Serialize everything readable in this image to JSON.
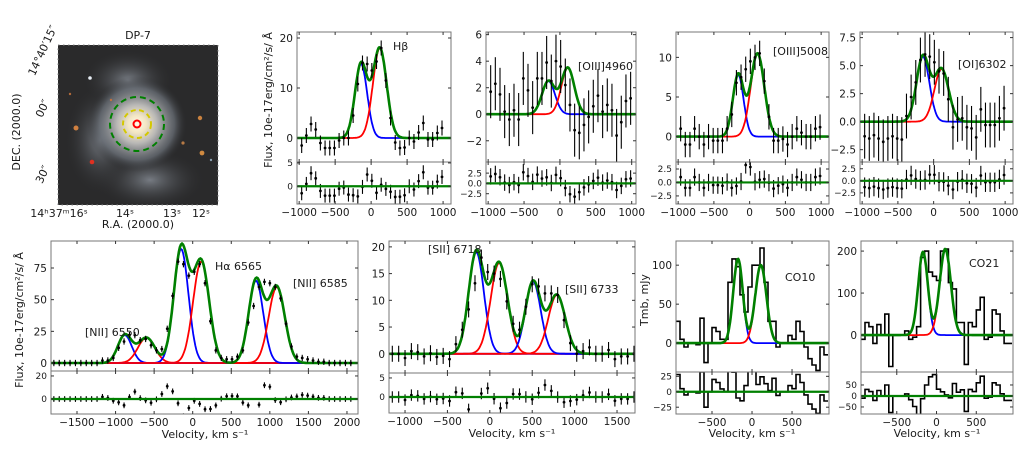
{
  "image_panel": {
    "title": "DP-7",
    "xlabel": "R.A. (2000.0)",
    "ylabel": "DEC. (2000.0)",
    "ra_tick_labels": [
      "14ʰ37ᵐ16ˢ",
      "14ˢ",
      "13ˢ",
      "12ˢ"
    ],
    "dec_tick_labels": [
      "14°40′15″",
      "00″",
      "30″"
    ],
    "aperture_colors": [
      "#008000",
      "#d4c800",
      "#ff0000"
    ]
  },
  "colors": {
    "blue_component": "#0000ff",
    "red_component": "#ff0000",
    "total_fit": "#008000",
    "data": "#000000"
  },
  "chart_data": [
    {
      "type": "line",
      "name": "hbeta",
      "labels": [
        "Hβ"
      ],
      "ylabel": "Flux, 10e-17erg/cm²/s/ Å",
      "xlabel": "",
      "xlim": [
        -1030,
        1110
      ],
      "ylim": [
        -4.8,
        21.2
      ],
      "resid_ylim": [
        -3.8,
        5.2
      ],
      "xticks": [
        -1000,
        -500,
        0,
        500,
        1000
      ],
      "xtick_labels": [
        "−1000",
        "−500",
        "0",
        "500",
        "1000"
      ],
      "yticks": [
        0,
        10,
        20
      ],
      "ytick_labels": [
        "0",
        "10",
        "20"
      ],
      "resid_yticks": [
        0,
        5
      ],
      "resid_ytick_labels": [
        "0",
        "5"
      ],
      "components": [
        {
          "center": -140,
          "amp": 14.8,
          "sigma": 85,
          "color": "blue"
        },
        {
          "center": 120,
          "amp": 18,
          "sigma": 95,
          "color": "red"
        }
      ],
      "style": "points",
      "err": 1.5,
      "x": [
        -965,
        -900,
        -835,
        -770,
        -705,
        -640,
        -575,
        -510,
        -445,
        -380,
        -315,
        -250,
        -185,
        -120,
        -55,
        10,
        75,
        140,
        205,
        270,
        335,
        400,
        465,
        530,
        595,
        660,
        725,
        790,
        855,
        920,
        985
      ],
      "y": [
        -1.5,
        0.5,
        2.8,
        1.7,
        -1,
        -2,
        -2,
        -2,
        -0.5,
        0,
        0,
        4.5,
        10.8,
        15,
        14.8,
        13.5,
        15.3,
        18,
        11.5,
        4,
        -0.9,
        -2,
        -1.9,
        0,
        -0.7,
        1.1,
        3,
        -0.3,
        -0.3,
        1,
        2
      ]
    },
    {
      "type": "line",
      "name": "oiii4960",
      "labels": [
        "[OIII]4960"
      ],
      "xlim": [
        -1030,
        1060
      ],
      "ylim": [
        -3.6,
        6.2
      ],
      "resid_ylim": [
        -5,
        5.2
      ],
      "xticks": [
        -1000,
        -500,
        0,
        500,
        1000
      ],
      "xtick_labels": [
        "−1000",
        "−500",
        "0",
        "500",
        "1000"
      ],
      "yticks": [
        -2,
        0,
        2,
        4,
        6
      ],
      "ytick_labels": [
        "−2",
        "0",
        "2",
        "4",
        "6"
      ],
      "resid_yticks": [
        -2.5,
        0,
        2.5
      ],
      "resid_ytick_labels": [
        "−2.5",
        "0.0",
        "2.5"
      ],
      "components": [
        {
          "center": -160,
          "amp": 2.5,
          "sigma": 90,
          "color": "blue"
        },
        {
          "center": 110,
          "amp": 3.5,
          "sigma": 90,
          "color": "red"
        }
      ],
      "style": "points",
      "err": 2,
      "x": [
        -965,
        -900,
        -835,
        -770,
        -705,
        -640,
        -575,
        -510,
        -445,
        -380,
        -315,
        -250,
        -185,
        -120,
        -55,
        10,
        75,
        140,
        205,
        270,
        335,
        400,
        465,
        530,
        595,
        660,
        725,
        790,
        855,
        920,
        985
      ],
      "y": [
        1.7,
        2.3,
        1.5,
        0.2,
        -0.4,
        0.3,
        -0.4,
        2.7,
        1.8,
        0.5,
        2.7,
        2.7,
        3.9,
        2.5,
        4.0,
        3.6,
        2.2,
        0.7,
        -1.2,
        -1.4,
        -0.8,
        -0.2,
        0.6,
        1.4,
        0.2,
        0.7,
        0.3,
        -1.6,
        -0.6,
        1.0,
        1.2
      ]
    },
    {
      "type": "line",
      "name": "oiii5008",
      "labels": [
        "[OIII]5008"
      ],
      "xlim": [
        -1030,
        1110
      ],
      "ylim": [
        -3.2,
        13.2
      ],
      "resid_ylim": [
        -4,
        3.8
      ],
      "xticks": [
        -1000,
        -500,
        0,
        500,
        1000
      ],
      "xtick_labels": [
        "−1000",
        "−500",
        "0",
        "500",
        "1000"
      ],
      "yticks": [
        0,
        5,
        10
      ],
      "ytick_labels": [
        "0",
        "5",
        "10"
      ],
      "resid_yticks": [
        -2.5,
        0,
        2.5
      ],
      "resid_ytick_labels": [
        "−2.5",
        "0.0",
        "2.5"
      ],
      "components": [
        {
          "center": -160,
          "amp": 7.8,
          "sigma": 75,
          "color": "blue"
        },
        {
          "center": 110,
          "amp": 10.5,
          "sigma": 95,
          "color": "red"
        }
      ],
      "style": "points",
      "err": 1.6,
      "x": [
        -965,
        -900,
        -835,
        -770,
        -705,
        -640,
        -575,
        -510,
        -445,
        -380,
        -315,
        -250,
        -185,
        -120,
        -55,
        10,
        75,
        140,
        205,
        270,
        335,
        400,
        465,
        530,
        595,
        660,
        725,
        790,
        855,
        920,
        985
      ],
      "y": [
        1,
        -1,
        -1,
        1,
        0,
        -1,
        0,
        -0.5,
        -0.5,
        -0.5,
        1,
        2.8,
        6.8,
        7.5,
        8.5,
        9.5,
        10,
        10.5,
        7,
        2.5,
        -0.5,
        -0.5,
        -0.3,
        -1,
        0,
        1,
        0.5,
        0,
        0,
        1,
        1.2
      ]
    },
    {
      "type": "line",
      "name": "oi6302",
      "labels": [
        "[OI]6302"
      ],
      "xlim": [
        -1030,
        1110
      ],
      "ylim": [
        -3.6,
        8.0
      ],
      "resid_ylim": [
        -4.8,
        3.9
      ],
      "xticks": [
        -1000,
        -500,
        0,
        500,
        1000
      ],
      "xtick_labels": [
        "−1000",
        "−500",
        "0",
        "500",
        "1000"
      ],
      "yticks": [
        -2.5,
        0,
        2.5,
        5,
        7.5
      ],
      "ytick_labels": [
        "−2.5",
        "0.0",
        "2.5",
        "5.0",
        "7.5"
      ],
      "resid_yticks": [
        -2.5,
        0,
        2.5
      ],
      "resid_ytick_labels": [
        "−2.5",
        "0.0",
        "2.5"
      ],
      "components": [
        {
          "center": -150,
          "amp": 5.8,
          "sigma": 90,
          "color": "blue"
        },
        {
          "center": 110,
          "amp": 4.7,
          "sigma": 100,
          "color": "red"
        }
      ],
      "style": "points",
      "err": 2,
      "x": [
        -965,
        -900,
        -835,
        -770,
        -705,
        -640,
        -575,
        -510,
        -445,
        -380,
        -315,
        -250,
        -185,
        -120,
        -55,
        10,
        75,
        140,
        205,
        270,
        335,
        400,
        465,
        530,
        595,
        660,
        725,
        790,
        855,
        920,
        985
      ],
      "y": [
        -1.3,
        -1.5,
        -1.2,
        -1.5,
        -1.8,
        -1.5,
        -1.3,
        -1.5,
        -1.6,
        0.5,
        2.2,
        3.5,
        5.5,
        6,
        5.8,
        5.3,
        4.5,
        4.3,
        2,
        -0.5,
        0.2,
        0.3,
        -0.5,
        -0.6,
        -1.4,
        1.1,
        -0.3,
        -0.3,
        -0.3,
        0.3,
        1.2
      ]
    },
    {
      "type": "line",
      "name": "halpha-nii",
      "labels": [
        "Hα 6565",
        "[NII] 6585",
        "[NII] 6550"
      ],
      "ylabel": "Flux, 10e-17erg/cm²/s/ Å",
      "xlabel": "Velocity, km s⁻¹",
      "xlim": [
        -1837,
        2143
      ],
      "ylim": [
        -6.3,
        96.3
      ],
      "resid_ylim": [
        -13,
        24.3
      ],
      "xticks": [
        -1500,
        -1000,
        -500,
        0,
        500,
        1000,
        1500,
        2000
      ],
      "xtick_labels": [
        "−1500",
        "−1000",
        "−500",
        "0",
        "500",
        "1000",
        "1500",
        "2000"
      ],
      "yticks": [
        0,
        25,
        50,
        75
      ],
      "ytick_labels": [
        "0",
        "25",
        "50",
        "75"
      ],
      "resid_yticks": [
        0,
        20
      ],
      "resid_ytick_labels": [
        "0",
        "20"
      ],
      "components": [
        {
          "center": -880,
          "amp": 22,
          "sigma": 90,
          "color": "blue"
        },
        {
          "center": -600,
          "amp": 20,
          "sigma": 110,
          "color": "red"
        },
        {
          "center": -150,
          "amp": 90,
          "sigma": 95,
          "color": "blue"
        },
        {
          "center": 110,
          "amp": 80,
          "sigma": 105,
          "color": "red"
        },
        {
          "center": 820,
          "amp": 65,
          "sigma": 95,
          "color": "blue"
        },
        {
          "center": 1090,
          "amp": 60,
          "sigma": 105,
          "color": "red"
        }
      ],
      "style": "points",
      "err": 2.5,
      "x": [
        -1800,
        -1730,
        -1660,
        -1590,
        -1520,
        -1450,
        -1380,
        -1310,
        -1240,
        -1170,
        -1100,
        -1030,
        -960,
        -890,
        -820,
        -750,
        -680,
        -610,
        -540,
        -470,
        -400,
        -330,
        -260,
        -190,
        -120,
        -50,
        20,
        90,
        160,
        230,
        300,
        370,
        440,
        510,
        580,
        650,
        720,
        790,
        860,
        930,
        1000,
        1070,
        1140,
        1210,
        1280,
        1350,
        1420,
        1490,
        1560,
        1630,
        1700,
        1770,
        1840,
        1910,
        1980,
        2050
      ],
      "y": [
        0,
        0,
        0,
        0,
        0,
        0,
        0,
        0,
        0,
        2,
        2,
        4,
        12,
        17,
        22,
        22,
        18,
        19,
        14,
        10,
        11,
        27,
        53,
        80,
        78,
        69,
        72,
        78,
        63,
        33,
        10,
        4,
        3,
        3,
        5,
        10,
        32,
        45,
        60,
        64,
        63,
        60,
        51,
        31,
        13,
        5,
        4,
        3,
        2,
        1,
        1,
        0,
        0,
        0,
        0,
        0
      ]
    },
    {
      "type": "line",
      "name": "sii",
      "labels": [
        "[SII] 6718",
        "[SII] 6733"
      ],
      "xlabel": "Velocity, km s⁻¹",
      "xlim": [
        -1189,
        1712
      ],
      "ylim": [
        -3.6,
        21.1
      ],
      "resid_ylim": [
        -4.2,
        6.3
      ],
      "xticks": [
        -1000,
        -500,
        0,
        500,
        1000,
        1500
      ],
      "xtick_labels": [
        "−1000",
        "−500",
        "0",
        "500",
        "1000",
        "1500"
      ],
      "yticks": [
        0,
        5,
        10,
        15,
        20
      ],
      "ytick_labels": [
        "0",
        "5",
        "10",
        "15",
        "20"
      ],
      "resid_yticks": [
        0,
        5
      ],
      "resid_ytick_labels": [
        "0",
        "5"
      ],
      "components": [
        {
          "center": -160,
          "amp": 19,
          "sigma": 90,
          "color": "blue"
        },
        {
          "center": 110,
          "amp": 17,
          "sigma": 100,
          "color": "red"
        },
        {
          "center": 510,
          "amp": 13.5,
          "sigma": 90,
          "color": "blue"
        },
        {
          "center": 790,
          "amp": 11,
          "sigma": 100,
          "color": "red"
        }
      ],
      "style": "points",
      "err": 1.5,
      "x": [
        -1150,
        -1075,
        -1000,
        -925,
        -850,
        -775,
        -700,
        -625,
        -550,
        -475,
        -400,
        -325,
        -250,
        -175,
        -100,
        -25,
        50,
        125,
        200,
        275,
        350,
        425,
        500,
        575,
        650,
        725,
        800,
        875,
        950,
        1025,
        1100,
        1175,
        1250,
        1325,
        1400,
        1475,
        1550,
        1625,
        1700
      ],
      "y": [
        0,
        0,
        -0.8,
        0.5,
        0.3,
        -0.5,
        0.1,
        -0.6,
        -0.4,
        -1,
        1.8,
        4.5,
        8.3,
        13.2,
        18,
        15.3,
        15,
        14,
        9.8,
        5.6,
        4.5,
        8.8,
        13,
        12.6,
        11.3,
        11.3,
        11,
        6.3,
        2,
        0,
        0.5,
        1.2,
        0,
        0,
        0.7,
        -1,
        -0.5,
        -0.5,
        0
      ]
    },
    {
      "type": "line",
      "name": "co10",
      "labels": [
        "CO10"
      ],
      "ylabel": "Tmb, mJy",
      "xlabel": "Velocity, km s⁻¹",
      "xlim": [
        -950,
        962
      ],
      "ylim": [
        -37,
        131
      ],
      "resid_ylim": [
        -36,
        32
      ],
      "xticks": [
        -500,
        0,
        500
      ],
      "xtick_labels": [
        "−500",
        "0",
        "500"
      ],
      "yticks": [
        0,
        50,
        100
      ],
      "ytick_labels": [
        "0",
        "50",
        "100"
      ],
      "resid_yticks": [
        -25,
        0,
        25
      ],
      "resid_ytick_labels": [
        "−25",
        "0",
        "25"
      ],
      "components": [
        {
          "center": -175,
          "amp": 108,
          "sigma": 60,
          "color": "blue"
        },
        {
          "center": 110,
          "amp": 100,
          "sigma": 70,
          "color": "red"
        }
      ],
      "style": "steps",
      "channel_width": 50,
      "x": [
        -925,
        -875,
        -825,
        -775,
        -725,
        -675,
        -625,
        -575,
        -525,
        -475,
        -425,
        -375,
        -325,
        -275,
        -225,
        -175,
        -125,
        -75,
        -25,
        25,
        75,
        125,
        175,
        225,
        275,
        325,
        375,
        425,
        475,
        525,
        575,
        625,
        675,
        725,
        775,
        825,
        875,
        925
      ],
      "y": [
        28,
        5,
        -5,
        0,
        0,
        -2,
        32,
        -25,
        0,
        20,
        15,
        5,
        5,
        78,
        108,
        98,
        62,
        40,
        72,
        100,
        100,
        122,
        78,
        28,
        28,
        -5,
        0,
        0,
        10,
        5,
        28,
        15,
        -5,
        -20,
        -28,
        -35,
        -5,
        -15
      ]
    },
    {
      "type": "line",
      "name": "co21",
      "labels": [
        "CO21"
      ],
      "xlabel": "Velocity, km s⁻¹",
      "xlim": [
        -950,
        962
      ],
      "ylim": [
        -88,
        224
      ],
      "resid_ylim": [
        -82,
        109
      ],
      "xticks": [
        -500,
        0,
        500
      ],
      "xtick_labels": [
        "−500",
        "0",
        "500"
      ],
      "yticks": [
        0,
        100,
        200
      ],
      "ytick_labels": [
        "0",
        "100",
        "200"
      ],
      "resid_yticks": [
        -50,
        0,
        50
      ],
      "resid_ytick_labels": [
        "−50",
        "0",
        "50"
      ],
      "components": [
        {
          "center": -170,
          "amp": 198,
          "sigma": 60,
          "color": "blue"
        },
        {
          "center": 110,
          "amp": 205,
          "sigma": 70,
          "color": "red"
        }
      ],
      "style": "steps",
      "channel_width": 50,
      "x": [
        -925,
        -875,
        -825,
        -775,
        -725,
        -675,
        -625,
        -575,
        -525,
        -475,
        -425,
        -375,
        -325,
        -275,
        -225,
        -175,
        -125,
        -75,
        -25,
        25,
        75,
        125,
        175,
        225,
        275,
        325,
        375,
        425,
        475,
        525,
        575,
        625,
        675,
        725,
        775,
        825,
        875,
        925
      ],
      "y": [
        -10,
        30,
        20,
        -20,
        25,
        0,
        50,
        -75,
        0,
        0,
        0,
        10,
        -10,
        -5,
        20,
        185,
        200,
        150,
        140,
        130,
        200,
        205,
        125,
        110,
        30,
        30,
        -70,
        30,
        20,
        60,
        90,
        -10,
        -5,
        60,
        50,
        10,
        -20,
        -20
      ]
    }
  ]
}
